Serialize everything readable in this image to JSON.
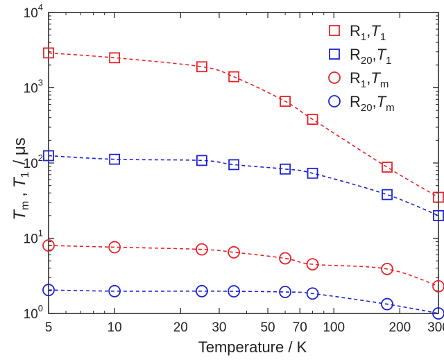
{
  "chart_data": {
    "type": "scatter",
    "xlabel": "Temperature / K",
    "ylabel_parts": {
      "t_m": "T",
      "t_m_sub": "m",
      "comma": ",",
      "t_1": "T",
      "t_1_sub": "1",
      "unit": "/ μs"
    },
    "x_scale": "log",
    "y_scale": "log",
    "xlim": [
      5,
      300
    ],
    "ylim": [
      1,
      10000
    ],
    "x_ticks": [
      5,
      10,
      20,
      30,
      50,
      70,
      100,
      200,
      300
    ],
    "x_tick_labels": [
      "5",
      "10",
      "20",
      "30",
      "50",
      "70",
      "100",
      "200",
      "300"
    ],
    "y_ticks": [
      1,
      10,
      100,
      1000,
      10000
    ],
    "y_tick_labels": [
      {
        "base": "10",
        "exp": "0"
      },
      {
        "base": "10",
        "exp": "1"
      },
      {
        "base": "10",
        "exp": "2"
      },
      {
        "base": "10",
        "exp": "3"
      },
      {
        "base": "10",
        "exp": "4"
      }
    ],
    "grid": false,
    "legend_position": "top-right",
    "series": [
      {
        "name": "R1,T1",
        "label": {
          "r": "R",
          "r_sub": "1",
          "comma": ",",
          "t": "T",
          "t_sub": "1"
        },
        "marker": "square",
        "color": "#e8232a",
        "x": [
          5,
          10,
          25,
          35,
          60,
          80,
          175,
          300
        ],
        "y": [
          2900,
          2500,
          1900,
          1400,
          660,
          380,
          88,
          35
        ]
      },
      {
        "name": "R20,T1",
        "label": {
          "r": "R",
          "r_sub": "20",
          "comma": ",",
          "t": "T",
          "t_sub": "1"
        },
        "marker": "square",
        "color": "#1a23d4",
        "x": [
          5,
          10,
          25,
          35,
          60,
          80,
          175,
          300
        ],
        "y": [
          125,
          112,
          108,
          95,
          83,
          73,
          38,
          20
        ]
      },
      {
        "name": "R1,Tm",
        "label": {
          "r": "R",
          "r_sub": "1",
          "comma": ",",
          "t": "T",
          "t_sub": "m"
        },
        "marker": "circle",
        "color": "#e8232a",
        "x": [
          5,
          10,
          25,
          35,
          60,
          80,
          175,
          300
        ],
        "y": [
          8.0,
          7.6,
          7.1,
          6.5,
          5.4,
          4.5,
          3.9,
          2.3
        ]
      },
      {
        "name": "R20,Tm",
        "label": {
          "r": "R",
          "r_sub": "20",
          "comma": ",",
          "t": "T",
          "t_sub": "m"
        },
        "marker": "circle",
        "color": "#1a23d4",
        "x": [
          5,
          10,
          25,
          35,
          60,
          80,
          175,
          300
        ],
        "y": [
          2.05,
          1.98,
          1.98,
          1.97,
          1.93,
          1.84,
          1.33,
          1.0
        ]
      }
    ]
  }
}
